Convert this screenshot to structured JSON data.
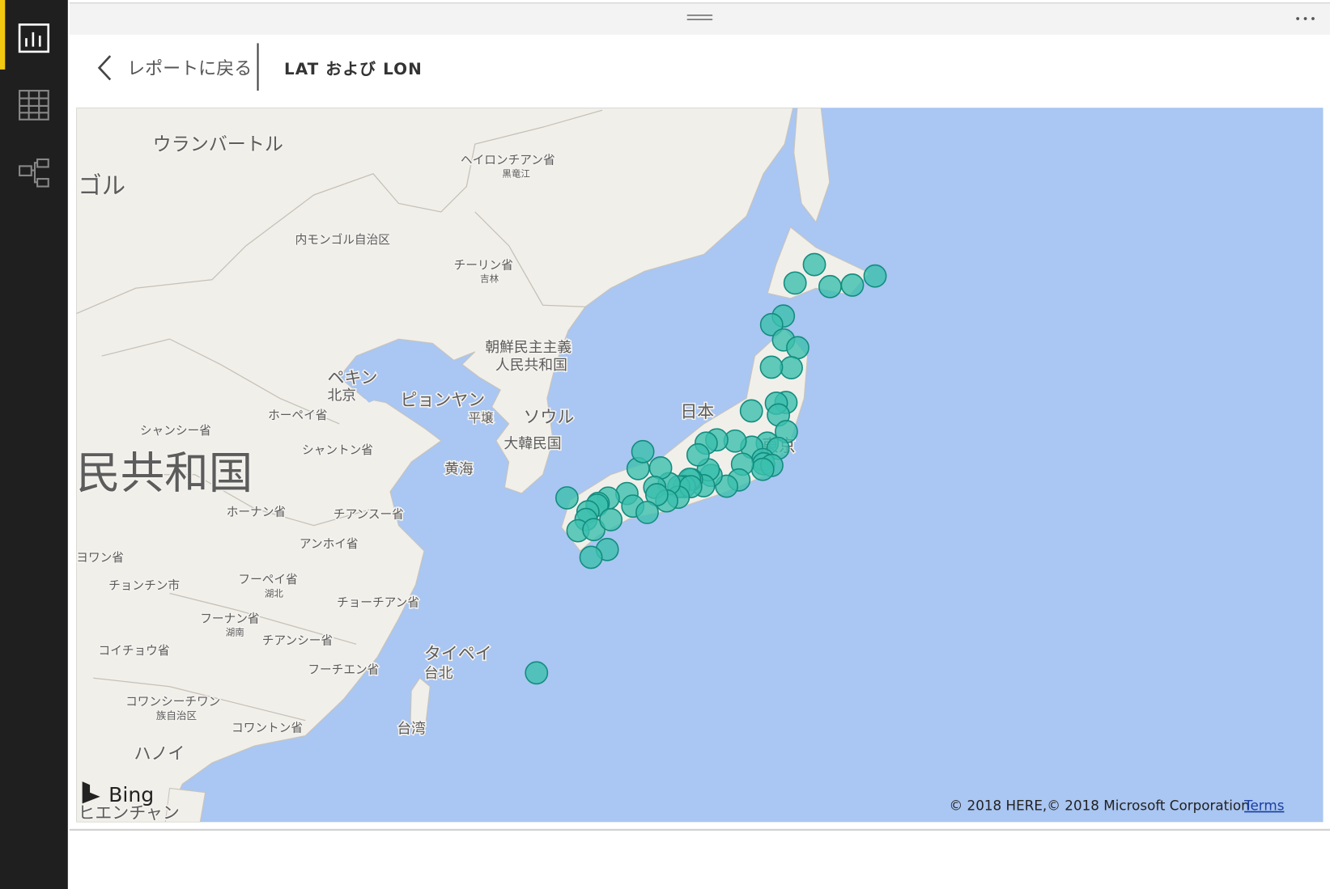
{
  "header": {
    "back": "レポートに戻る",
    "title": "LAT および LON"
  },
  "map_labels": [
    "ウランバートル",
    "ゴル",
    "ヘイロンチアン省",
    "黒竜江",
    "内モンゴル自治区",
    "チーリン省",
    "吉林",
    "朝鮮民主主義",
    "人民共和国",
    "ペキン",
    "北京",
    "ホーペイ省",
    "ピョンヤン",
    "平壌",
    "ソウル",
    "大韓民国",
    "黄海",
    "シャンシー省",
    "シャントン省",
    "民共和国",
    "ホーナン省",
    "チアンスー省",
    "アンホイ省",
    "ヨワン省",
    "チョンチン市",
    "フーペイ省",
    "湖北",
    "チョーチアン省",
    "フーナン省",
    "湖南",
    "チアンシー省",
    "コイチョウ省",
    "タイペイ",
    "台北",
    "フーチエン省",
    "コワンシーチワン",
    "族自治区",
    "コワントン省",
    "台湾",
    "ハノイ",
    "ヒエンチャン",
    "日本",
    "東京"
  ],
  "bing": "Bing",
  "attribution": "© 2018 HERE,© 2018 Microsoft Corporation",
  "terms": "Terms",
  "chart_data": {
    "type": "map",
    "color": "#3cbfae",
    "x": [
      141.35,
      142.37,
      144.38,
      145.58,
      143.2,
      140.73,
      140.11,
      140.74,
      141.49,
      141.15,
      140.87,
      140.1,
      140.36,
      140.47,
      140.89,
      139.04,
      139.88,
      140.45,
      139.06,
      139.65,
      139.69,
      140.12,
      139.64,
      138.57,
      138.18,
      138.38,
      137.73,
      136.91,
      136.76,
      137.21,
      136.65,
      136.22,
      136.51,
      135.87,
      135.77,
      135.5,
      135.2,
      135.83,
      135.17,
      134.69,
      134.24,
      133.05,
      133.3,
      133.93,
      132.46,
      131.47,
      134.56,
      134.04,
      132.77,
      133.53,
      130.94,
      130.88,
      130.4,
      130.3,
      129.87,
      129.29,
      130.71,
      131.61,
      131.42,
      130.56,
      127.68
    ],
    "values": [
      43.06,
      43.77,
      42.98,
      43.33,
      42.92,
      41.77,
      41.43,
      40.82,
      40.51,
      39.7,
      38.27,
      39.72,
      38.24,
      37.75,
      37.05,
      37.92,
      36.56,
      36.34,
      36.39,
      35.86,
      35.68,
      35.61,
      35.44,
      35.66,
      36.65,
      34.98,
      34.71,
      35.18,
      35.42,
      36.7,
      36.56,
      36.06,
      34.73,
      35.0,
      35.01,
      34.69,
      34.69,
      34.69,
      34.23,
      34.82,
      35.5,
      35.47,
      36.2,
      34.66,
      34.39,
      34.19,
      34.07,
      34.34,
      33.84,
      33.56,
      33.96,
      33.88,
      33.59,
      33.25,
      32.75,
      34.2,
      32.8,
      33.24,
      31.91,
      31.56,
      26.21
    ]
  }
}
